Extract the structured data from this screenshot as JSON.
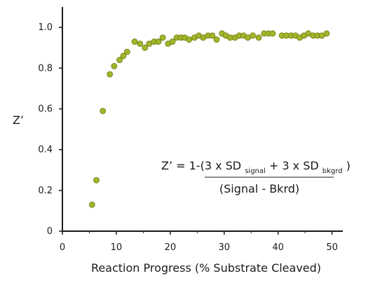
{
  "chart_data": {
    "type": "scatter",
    "xlabel": "Reaction Progress (% Substrate Cleaved)",
    "ylabel": "Z’",
    "xlim": [
      0,
      52
    ],
    "ylim": [
      0,
      1.1
    ],
    "x_ticks": [
      0,
      10,
      20,
      30,
      40,
      50
    ],
    "x_tick_labels": [
      "0",
      "10",
      "20",
      "30",
      "40",
      "50"
    ],
    "y_ticks": [
      0,
      0.2,
      0.4,
      0.6,
      0.8,
      1.0
    ],
    "y_tick_labels": [
      "0",
      "0.2",
      "0.4",
      "0.6",
      "0.8",
      "1.0"
    ],
    "grid": false,
    "marker_color": "#a3b52a",
    "marker_edge_color": "#6b7a12",
    "series": [
      {
        "x": [
          5.5,
          6.3,
          7.5,
          8.8,
          9.6,
          10.6,
          11.3,
          12.0,
          13.4,
          14.4,
          15.3,
          16.1,
          17.0,
          17.8,
          18.6,
          19.6,
          20.4,
          21.2,
          22.0,
          22.7,
          23.5,
          24.5,
          25.3,
          26.1,
          27.0,
          27.8,
          28.6,
          29.6,
          30.3,
          31.1,
          32.0,
          32.8,
          33.6,
          34.4,
          35.3,
          36.4,
          37.4,
          38.2,
          39.0,
          40.7,
          41.5,
          42.4,
          43.2,
          44.0,
          44.8,
          45.6,
          46.5,
          47.3,
          48.1,
          49.0
        ],
        "y": [
          0.13,
          0.25,
          0.59,
          0.77,
          0.81,
          0.84,
          0.86,
          0.88,
          0.93,
          0.92,
          0.9,
          0.92,
          0.93,
          0.93,
          0.95,
          0.92,
          0.93,
          0.95,
          0.95,
          0.95,
          0.94,
          0.95,
          0.96,
          0.95,
          0.96,
          0.96,
          0.94,
          0.97,
          0.96,
          0.95,
          0.95,
          0.96,
          0.96,
          0.95,
          0.96,
          0.95,
          0.97,
          0.97,
          0.97,
          0.96,
          0.96,
          0.96,
          0.96,
          0.95,
          0.96,
          0.97,
          0.96,
          0.96,
          0.96,
          0.97
        ]
      }
    ],
    "annotation": {
      "formula_lhs": "Z’ = 1-(3 x SD",
      "sub1": "signal",
      "mid": " + 3 x SD",
      "sub2": "bkgrd",
      "rhs": ")",
      "denominator": "(Signal - Bkrd)"
    }
  }
}
